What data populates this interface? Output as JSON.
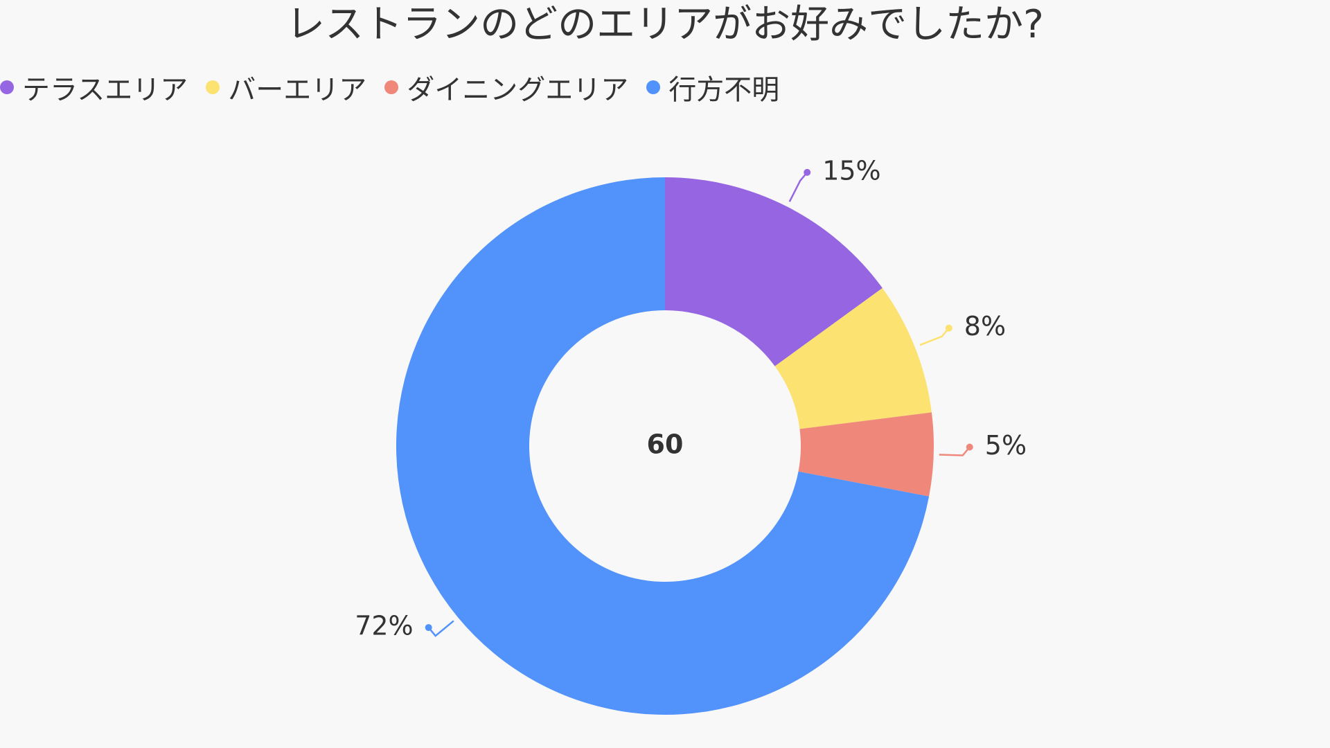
{
  "chart_data": {
    "type": "pie",
    "title": "レストランのどのエリアがお好みでしたか?",
    "center_label": "60",
    "legend_position": "top-left",
    "slices": [
      {
        "name": "テラスエリア",
        "value": 15,
        "label": "15%",
        "color": "#9666e2"
      },
      {
        "name": "バーエリア",
        "value": 8,
        "label": "8%",
        "color": "#fce270"
      },
      {
        "name": "ダイニングエリア",
        "value": 5,
        "label": "5%",
        "color": "#ef887b"
      },
      {
        "name": "行方不明",
        "value": 72,
        "label": "72%",
        "color": "#5292fb"
      }
    ]
  }
}
